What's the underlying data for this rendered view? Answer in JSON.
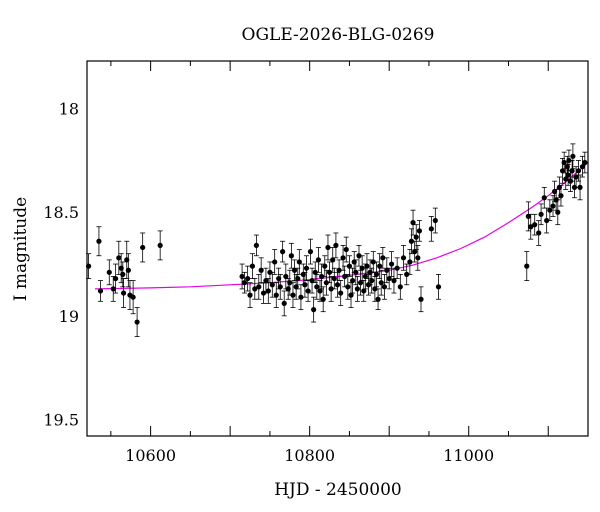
{
  "chart_data": {
    "type": "scatter",
    "title": "OGLE-2026-BLG-0269",
    "xlabel": "HJD - 2450000",
    "ylabel": "I magnitude",
    "xlim": [
      10520,
      11150
    ],
    "ylim": [
      19.58,
      17.77
    ],
    "y_inverted": true,
    "x_ticks": [
      10600,
      10800,
      11000
    ],
    "y_ticks": [
      18,
      18.5,
      19,
      19.5
    ],
    "y_tick_labels": [
      "18",
      "18.5",
      "19",
      "19.5"
    ],
    "marker_color": "#000000",
    "model_color": "#e600e6",
    "grid": false,
    "series": [
      {
        "kind": "points",
        "points": [
          [
            10522,
            18.76,
            0.06
          ],
          [
            10535,
            18.64,
            0.07
          ],
          [
            10537,
            18.88,
            0.05
          ],
          [
            10548,
            18.79,
            0.06
          ],
          [
            10553,
            18.87,
            0.06
          ],
          [
            10556,
            18.82,
            0.07
          ],
          [
            10560,
            18.72,
            0.08
          ],
          [
            10563,
            18.77,
            0.07
          ],
          [
            10565,
            18.8,
            0.06
          ],
          [
            10566,
            18.89,
            0.07
          ],
          [
            10570,
            18.73,
            0.09
          ],
          [
            10572,
            18.78,
            0.08
          ],
          [
            10574,
            18.9,
            0.07
          ],
          [
            10578,
            18.91,
            0.08
          ],
          [
            10583,
            19.03,
            0.07
          ],
          [
            10590,
            18.67,
            0.07
          ],
          [
            10612,
            18.66,
            0.07
          ],
          [
            10715,
            18.81,
            0.06
          ],
          [
            10718,
            18.84,
            0.05
          ],
          [
            10722,
            18.82,
            0.06
          ],
          [
            10725,
            18.9,
            0.06
          ],
          [
            10728,
            18.76,
            0.06
          ],
          [
            10731,
            18.87,
            0.05
          ],
          [
            10733,
            18.66,
            0.05
          ],
          [
            10736,
            18.86,
            0.06
          ],
          [
            10739,
            18.78,
            0.06
          ],
          [
            10742,
            18.89,
            0.05
          ],
          [
            10745,
            18.83,
            0.06
          ],
          [
            10748,
            18.88,
            0.06
          ],
          [
            10750,
            18.79,
            0.05
          ],
          [
            10753,
            18.85,
            0.06
          ],
          [
            10756,
            18.74,
            0.06
          ],
          [
            10758,
            18.9,
            0.06
          ],
          [
            10761,
            18.82,
            0.05
          ],
          [
            10763,
            18.86,
            0.06
          ],
          [
            10766,
            18.69,
            0.05
          ],
          [
            10768,
            18.94,
            0.06
          ],
          [
            10770,
            18.81,
            0.06
          ],
          [
            10773,
            18.87,
            0.05
          ],
          [
            10775,
            18.84,
            0.06
          ],
          [
            10777,
            18.71,
            0.06
          ],
          [
            10779,
            18.9,
            0.06
          ],
          [
            10781,
            18.78,
            0.05
          ],
          [
            10783,
            18.86,
            0.06
          ],
          [
            10785,
            18.82,
            0.05
          ],
          [
            10787,
            18.74,
            0.06
          ],
          [
            10789,
            18.91,
            0.06
          ],
          [
            10792,
            18.8,
            0.05
          ],
          [
            10794,
            18.85,
            0.06
          ],
          [
            10796,
            18.77,
            0.06
          ],
          [
            10798,
            18.88,
            0.05
          ],
          [
            10801,
            18.69,
            0.06
          ],
          [
            10803,
            18.83,
            0.06
          ],
          [
            10805,
            18.97,
            0.06
          ],
          [
            10807,
            18.79,
            0.05
          ],
          [
            10809,
            18.86,
            0.06
          ],
          [
            10811,
            18.73,
            0.06
          ],
          [
            10813,
            18.88,
            0.05
          ],
          [
            10815,
            18.81,
            0.06
          ],
          [
            10817,
            18.92,
            0.06
          ],
          [
            10819,
            18.76,
            0.05
          ],
          [
            10821,
            18.84,
            0.06
          ],
          [
            10823,
            18.67,
            0.06
          ],
          [
            10825,
            18.79,
            0.05
          ],
          [
            10827,
            18.87,
            0.06
          ],
          [
            10829,
            18.73,
            0.06
          ],
          [
            10831,
            18.82,
            0.05
          ],
          [
            10833,
            18.66,
            0.06
          ],
          [
            10835,
            18.85,
            0.06
          ],
          [
            10837,
            18.78,
            0.05
          ],
          [
            10839,
            18.89,
            0.06
          ],
          [
            10842,
            18.72,
            0.06
          ],
          [
            10844,
            18.81,
            0.05
          ],
          [
            10846,
            18.68,
            0.06
          ],
          [
            10848,
            18.86,
            0.06
          ],
          [
            10850,
            18.76,
            0.05
          ],
          [
            10852,
            18.9,
            0.06
          ],
          [
            10854,
            18.83,
            0.06
          ],
          [
            10856,
            18.74,
            0.05
          ],
          [
            10858,
            18.79,
            0.06
          ],
          [
            10860,
            18.87,
            0.06
          ],
          [
            10862,
            18.71,
            0.05
          ],
          [
            10864,
            18.84,
            0.06
          ],
          [
            10866,
            18.77,
            0.06
          ],
          [
            10868,
            18.88,
            0.05
          ],
          [
            10870,
            18.81,
            0.06
          ],
          [
            10872,
            18.76,
            0.06
          ],
          [
            10874,
            18.85,
            0.05
          ],
          [
            10876,
            18.79,
            0.06
          ],
          [
            10878,
            18.83,
            0.06
          ],
          [
            10880,
            18.74,
            0.05
          ],
          [
            10882,
            18.87,
            0.06
          ],
          [
            10884,
            18.8,
            0.06
          ],
          [
            10886,
            18.92,
            0.05
          ],
          [
            10888,
            18.76,
            0.06
          ],
          [
            10890,
            18.84,
            0.06
          ],
          [
            10892,
            18.72,
            0.05
          ],
          [
            10894,
            18.86,
            0.06
          ],
          [
            10897,
            18.78,
            0.06
          ],
          [
            10900,
            18.82,
            0.05
          ],
          [
            10903,
            18.75,
            0.06
          ],
          [
            10906,
            18.83,
            0.06
          ],
          [
            10910,
            18.77,
            0.05
          ],
          [
            10914,
            18.86,
            0.06
          ],
          [
            10918,
            18.72,
            0.06
          ],
          [
            10922,
            18.8,
            0.05
          ],
          [
            10926,
            18.74,
            0.06
          ],
          [
            10928,
            18.64,
            0.06
          ],
          [
            10930,
            18.55,
            0.06
          ],
          [
            10932,
            18.69,
            0.05
          ],
          [
            10934,
            18.62,
            0.06
          ],
          [
            10936,
            18.72,
            0.06
          ],
          [
            10938,
            18.59,
            0.05
          ],
          [
            10940,
            18.92,
            0.06
          ],
          [
            10953,
            18.58,
            0.06
          ],
          [
            10958,
            18.54,
            0.06
          ],
          [
            10962,
            18.86,
            0.06
          ],
          [
            11073,
            18.76,
            0.07
          ],
          [
            11075,
            18.52,
            0.07
          ],
          [
            11078,
            18.57,
            0.06
          ],
          [
            11083,
            18.56,
            0.05
          ],
          [
            11088,
            18.6,
            0.06
          ],
          [
            11091,
            18.51,
            0.05
          ],
          [
            11095,
            18.43,
            0.05
          ],
          [
            11098,
            18.54,
            0.06
          ],
          [
            11102,
            18.49,
            0.05
          ],
          [
            11106,
            18.47,
            0.05
          ],
          [
            11108,
            18.4,
            0.05
          ],
          [
            11110,
            18.44,
            0.05
          ],
          [
            11112,
            18.5,
            0.06
          ],
          [
            11114,
            18.38,
            0.05
          ],
          [
            11116,
            18.42,
            0.05
          ],
          [
            11118,
            18.3,
            0.06
          ],
          [
            11120,
            18.26,
            0.05
          ],
          [
            11122,
            18.34,
            0.05
          ],
          [
            11124,
            18.28,
            0.05
          ],
          [
            11125,
            18.32,
            0.05
          ],
          [
            11126,
            18.25,
            0.05
          ],
          [
            11128,
            18.35,
            0.05
          ],
          [
            11130,
            18.3,
            0.05
          ],
          [
            11131,
            18.23,
            0.06
          ],
          [
            11133,
            18.38,
            0.05
          ],
          [
            11135,
            18.33,
            0.05
          ],
          [
            11138,
            18.3,
            0.05
          ],
          [
            11140,
            18.38,
            0.06
          ],
          [
            11143,
            18.28,
            0.05
          ],
          [
            11146,
            18.26,
            0.05
          ]
        ]
      },
      {
        "kind": "model-curve",
        "x": [
          10530,
          10600,
          10650,
          10700,
          10750,
          10800,
          10850,
          10900,
          10930,
          10960,
          10990,
          11020,
          11050,
          11080,
          11100,
          11120,
          11135,
          11150
        ],
        "y": [
          18.87,
          18.865,
          18.86,
          18.85,
          18.84,
          18.825,
          18.805,
          18.78,
          18.755,
          18.72,
          18.675,
          18.62,
          18.55,
          18.475,
          18.42,
          18.36,
          18.31,
          18.26
        ]
      }
    ]
  }
}
